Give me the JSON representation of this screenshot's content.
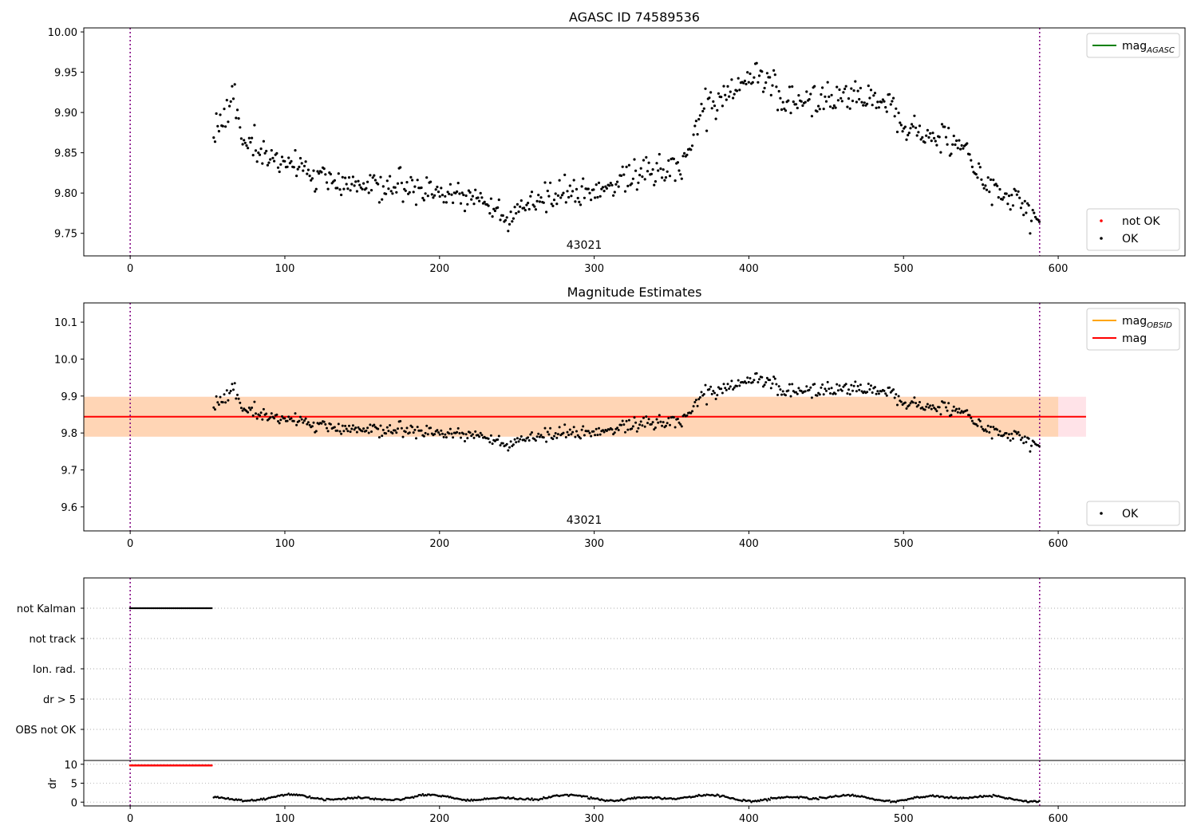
{
  "chart_data": [
    {
      "type": "scatter",
      "title": "AGASC ID 74589536",
      "annotation": "43021",
      "xlim": [
        -30,
        682
      ],
      "ylim": [
        9.722,
        10.005
      ],
      "xticks": [
        0,
        100,
        200,
        300,
        400,
        500,
        600
      ],
      "yticks": [
        9.75,
        9.8,
        9.85,
        9.9,
        9.95,
        10.0
      ],
      "ytick_labels": [
        "9.75",
        "9.80",
        "9.85",
        "9.90",
        "9.95",
        "10.00"
      ],
      "vlines": [
        0,
        588
      ],
      "legends": [
        {
          "position": "top-right",
          "entries": [
            {
              "label": "mag",
              "sub": "AGASC",
              "style": "line",
              "color": "#008000"
            }
          ]
        },
        {
          "position": "bottom-right",
          "entries": [
            {
              "label": "not OK",
              "style": "dot",
              "color": "#ff0000"
            },
            {
              "label": "OK",
              "style": "dot",
              "color": "#000000"
            }
          ]
        }
      ],
      "series": [
        {
          "name": "OK",
          "color": "#000000",
          "x_start": 54,
          "x_end": 588,
          "trend_x": [
            54,
            68,
            72,
            90,
            110,
            130,
            160,
            200,
            230,
            245,
            260,
            300,
            340,
            355,
            370,
            395,
            412,
            425,
            445,
            470,
            490,
            500,
            520,
            540,
            550,
            570,
            588
          ],
          "trend_y": [
            9.875,
            9.91,
            9.865,
            9.845,
            9.83,
            9.812,
            9.81,
            9.8,
            9.79,
            9.772,
            9.79,
            9.805,
            9.828,
            9.83,
            9.9,
            9.935,
            9.945,
            9.912,
            9.92,
            9.912,
            9.915,
            9.885,
            9.875,
            9.85,
            9.815,
            9.795,
            9.765
          ],
          "scatter": 0.013
        }
      ]
    },
    {
      "type": "scatter",
      "title": "Magnitude Estimates",
      "annotation": "43021",
      "xlim": [
        -30,
        682
      ],
      "ylim": [
        9.535,
        10.152
      ],
      "xticks": [
        0,
        100,
        200,
        300,
        400,
        500,
        600
      ],
      "yticks": [
        9.6,
        9.7,
        9.8,
        9.9,
        10.0,
        10.1
      ],
      "ytick_labels": [
        "9.6",
        "9.7",
        "9.8",
        "9.9",
        "10.0",
        "10.1"
      ],
      "vlines": [
        0,
        588
      ],
      "bands": [
        {
          "x_range": [
            -30,
            618
          ],
          "y_range": [
            9.79,
            9.898
          ],
          "color": "#ffc0cb",
          "opacity": 0.45
        },
        {
          "x_range": [
            -30,
            600
          ],
          "y_range": [
            9.79,
            9.898
          ],
          "color": "#ffa500",
          "opacity": 0.22
        }
      ],
      "hlines": [
        {
          "label": "mag",
          "y": 9.844,
          "x_range": [
            -30,
            618
          ],
          "color": "#ff0000"
        }
      ],
      "legends": [
        {
          "position": "top-right",
          "entries": [
            {
              "label": "mag",
              "sub": "OBSID",
              "style": "line",
              "color": "#ffa500"
            },
            {
              "label": "mag",
              "style": "line",
              "color": "#ff0000"
            }
          ]
        },
        {
          "position": "bottom-right",
          "entries": [
            {
              "label": "OK",
              "style": "dot",
              "color": "#000000"
            }
          ]
        }
      ],
      "series": [
        {
          "name": "OK",
          "color": "#000000",
          "same_as_panel": 0
        }
      ]
    },
    {
      "type": "scatter",
      "xlim": [
        -30,
        682
      ],
      "categories": [
        "not Kalman",
        "not track",
        "Ion. rad.",
        "dr > 5",
        "OBS not OK"
      ],
      "vlines": [
        0,
        588
      ],
      "series": [
        {
          "category": "not Kalman",
          "x_range": [
            0,
            53
          ],
          "color": "#000000"
        }
      ]
    },
    {
      "type": "scatter",
      "xlim": [
        -30,
        682
      ],
      "ylim": [
        -1,
        11
      ],
      "ylabel": "dr",
      "xticks": [
        0,
        100,
        200,
        300,
        400,
        500,
        600
      ],
      "yticks": [
        0,
        5,
        10
      ],
      "ytick_labels": [
        "0",
        "5",
        "10"
      ],
      "vlines": [
        0,
        588
      ],
      "series": [
        {
          "name": "not OK",
          "x_range": [
            0,
            53
          ],
          "y": 9.7,
          "color": "#ff0000"
        },
        {
          "name": "OK",
          "x_range": [
            54,
            588
          ],
          "color": "#000000",
          "y_range": [
            0,
            2.6
          ]
        }
      ]
    }
  ]
}
